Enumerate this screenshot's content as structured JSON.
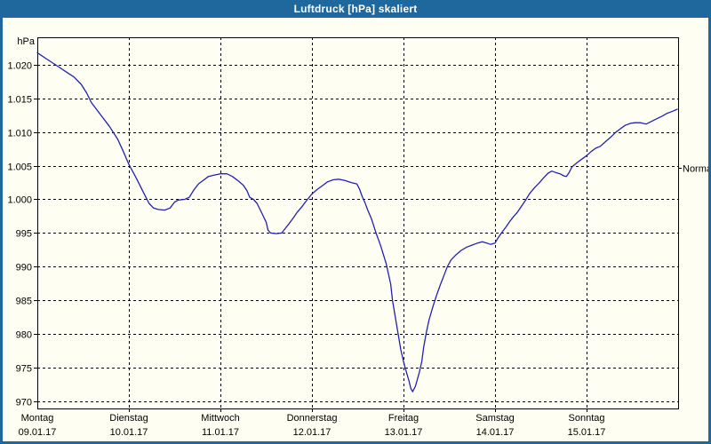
{
  "window": {
    "title": "Luftdruck [hPa] skaliert"
  },
  "colors": {
    "titlebar": "#1e689e",
    "window_border": "#1e689e",
    "background": "#fffef2",
    "grid": "#000000",
    "axis": "#000000",
    "line": "#2121b4",
    "title_text": "#ffffff"
  },
  "chart_data": {
    "type": "line",
    "title": "Luftdruck [hPa] skaliert",
    "ylabel": "hPa",
    "xlabel": "",
    "legend": "none",
    "grid": "dashed",
    "y_axis": {
      "unit_label": "hPa",
      "tick_labels": [
        "1.020",
        "1.015",
        "1.010",
        "1.005",
        "1.000",
        "995",
        "990",
        "985",
        "980",
        "975",
        "970"
      ],
      "tick_values": [
        1020,
        1015,
        1010,
        1005,
        1000,
        995,
        990,
        985,
        980,
        975,
        970
      ],
      "range": [
        968.9,
        1024.1
      ]
    },
    "x_axis": {
      "range_days": [
        0,
        7
      ],
      "days": [
        {
          "name": "Montag",
          "date": "09.01.17"
        },
        {
          "name": "Dienstag",
          "date": "10.01.17"
        },
        {
          "name": "Mittwoch",
          "date": "11.01.17"
        },
        {
          "name": "Donnerstag",
          "date": "12.01.17"
        },
        {
          "name": "Freitag",
          "date": "13.01.17"
        },
        {
          "name": "Samstag",
          "date": "14.01.17"
        },
        {
          "name": "Sonntag",
          "date": "15.01.17"
        }
      ]
    },
    "annotations": [
      {
        "label": "Normal",
        "value": 1004.7,
        "side": "right"
      }
    ],
    "series": [
      {
        "name": "Luftdruck",
        "color": "#2121b4",
        "points": [
          [
            0,
            1021.8
          ],
          [
            0.11,
            1020.8
          ],
          [
            0.2,
            1020
          ],
          [
            0.3,
            1019.1
          ],
          [
            0.4,
            1018.2
          ],
          [
            0.45,
            1017.5
          ],
          [
            0.48,
            1017.1
          ],
          [
            0.54,
            1015.8
          ],
          [
            0.59,
            1014.4
          ],
          [
            0.69,
            1012.6
          ],
          [
            0.79,
            1010.8
          ],
          [
            0.88,
            1008.9
          ],
          [
            0.94,
            1007.1
          ],
          [
            1,
            1005.2
          ],
          [
            1.08,
            1003.2
          ],
          [
            1.15,
            1001.3
          ],
          [
            1.22,
            999.4
          ],
          [
            1.27,
            998.7
          ],
          [
            1.32,
            998.5
          ],
          [
            1.39,
            998.4
          ],
          [
            1.45,
            998.7
          ],
          [
            1.5,
            999.6
          ],
          [
            1.54,
            999.9
          ],
          [
            1.61,
            1000
          ],
          [
            1.66,
            1000.3
          ],
          [
            1.71,
            1001.4
          ],
          [
            1.76,
            1002.3
          ],
          [
            1.82,
            1002.9
          ],
          [
            1.87,
            1003.4
          ],
          [
            1.93,
            1003.6
          ],
          [
            2,
            1003.8
          ],
          [
            2.07,
            1003.8
          ],
          [
            2.13,
            1003.4
          ],
          [
            2.19,
            1002.8
          ],
          [
            2.25,
            1002.1
          ],
          [
            2.29,
            1001.3
          ],
          [
            2.32,
            1000.3
          ],
          [
            2.36,
            1000
          ],
          [
            2.4,
            999.4
          ],
          [
            2.45,
            998
          ],
          [
            2.5,
            996.6
          ],
          [
            2.52,
            995.4
          ],
          [
            2.55,
            995
          ],
          [
            2.61,
            994.9
          ],
          [
            2.67,
            995
          ],
          [
            2.71,
            995.7
          ],
          [
            2.75,
            996.4
          ],
          [
            2.8,
            997.3
          ],
          [
            2.84,
            998.1
          ],
          [
            2.89,
            998.9
          ],
          [
            2.94,
            999.8
          ],
          [
            3,
            1000.8
          ],
          [
            3.06,
            1001.5
          ],
          [
            3.12,
            1002.1
          ],
          [
            3.17,
            1002.6
          ],
          [
            3.23,
            1002.9
          ],
          [
            3.29,
            1003
          ],
          [
            3.36,
            1002.8
          ],
          [
            3.43,
            1002.5
          ],
          [
            3.49,
            1002.3
          ],
          [
            3.52,
            1001.5
          ],
          [
            3.55,
            1000.4
          ],
          [
            3.58,
            999.5
          ],
          [
            3.61,
            998.4
          ],
          [
            3.65,
            997.1
          ],
          [
            3.7,
            995
          ],
          [
            3.75,
            993.1
          ],
          [
            3.81,
            990.5
          ],
          [
            3.86,
            987.4
          ],
          [
            3.88,
            985
          ],
          [
            3.92,
            981.7
          ],
          [
            3.97,
            977.7
          ],
          [
            4,
            975.9
          ],
          [
            4.03,
            974.4
          ],
          [
            4.06,
            973
          ],
          [
            4.08,
            971.9
          ],
          [
            4.1,
            971.4
          ],
          [
            4.13,
            972.2
          ],
          [
            4.17,
            974.1
          ],
          [
            4.2,
            975.9
          ],
          [
            4.22,
            978
          ],
          [
            4.25,
            980.2
          ],
          [
            4.28,
            982.1
          ],
          [
            4.32,
            984
          ],
          [
            4.36,
            985.7
          ],
          [
            4.4,
            987.2
          ],
          [
            4.44,
            988.6
          ],
          [
            4.48,
            990
          ],
          [
            4.52,
            991
          ],
          [
            4.57,
            991.7
          ],
          [
            4.63,
            992.4
          ],
          [
            4.69,
            992.9
          ],
          [
            4.75,
            993.2
          ],
          [
            4.81,
            993.5
          ],
          [
            4.86,
            993.7
          ],
          [
            4.91,
            993.5
          ],
          [
            4.95,
            993.3
          ],
          [
            5,
            993.5
          ],
          [
            5.03,
            994.2
          ],
          [
            5.07,
            995
          ],
          [
            5.12,
            995.9
          ],
          [
            5.16,
            996.7
          ],
          [
            5.2,
            997.4
          ],
          [
            5.24,
            998
          ],
          [
            5.28,
            998.8
          ],
          [
            5.33,
            999.8
          ],
          [
            5.38,
            1000.9
          ],
          [
            5.43,
            1001.7
          ],
          [
            5.48,
            1002.4
          ],
          [
            5.53,
            1003.2
          ],
          [
            5.58,
            1003.9
          ],
          [
            5.62,
            1004.2
          ],
          [
            5.66,
            1004
          ],
          [
            5.71,
            1003.8
          ],
          [
            5.75,
            1003.5
          ],
          [
            5.78,
            1003.4
          ],
          [
            5.81,
            1004
          ],
          [
            5.84,
            1004.8
          ],
          [
            5.89,
            1005.4
          ],
          [
            5.94,
            1005.9
          ],
          [
            6,
            1006.5
          ],
          [
            6.05,
            1007.1
          ],
          [
            6.1,
            1007.6
          ],
          [
            6.15,
            1007.9
          ],
          [
            6.2,
            1008.5
          ],
          [
            6.26,
            1009.2
          ],
          [
            6.32,
            1010
          ],
          [
            6.37,
            1010.5
          ],
          [
            6.42,
            1011
          ],
          [
            6.48,
            1011.3
          ],
          [
            6.53,
            1011.4
          ],
          [
            6.59,
            1011.4
          ],
          [
            6.65,
            1011.2
          ],
          [
            6.71,
            1011.6
          ],
          [
            6.77,
            1012
          ],
          [
            6.83,
            1012.4
          ],
          [
            6.88,
            1012.8
          ],
          [
            6.94,
            1013.1
          ],
          [
            6.99,
            1013.4
          ]
        ]
      }
    ]
  }
}
